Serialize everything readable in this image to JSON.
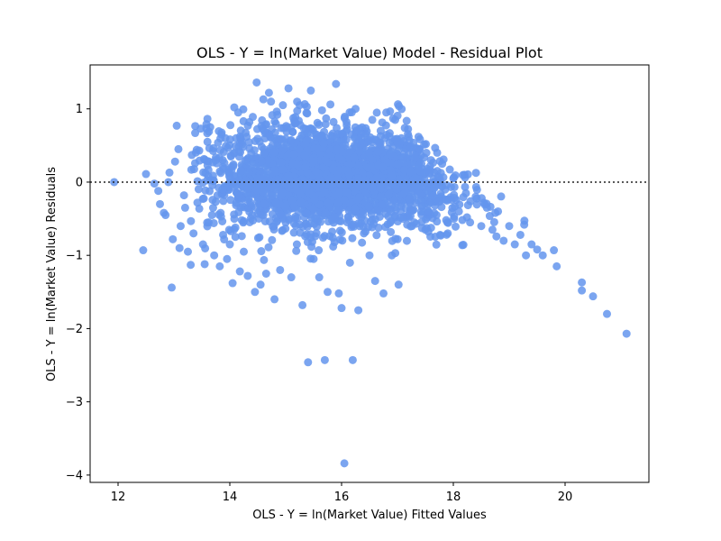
{
  "chart_data": {
    "type": "scatter",
    "title": "OLS - Y = ln(Market Value) Model - Residual Plot",
    "xlabel": "OLS - Y = ln(Market Value) Fitted Values",
    "ylabel": "OLS - Y = ln(Market Value) Residuals",
    "xlim": [
      11.5,
      21.5
    ],
    "ylim": [
      -4.1,
      1.6
    ],
    "xticks": [
      12,
      14,
      16,
      18,
      20
    ],
    "yticks": [
      1,
      0,
      -1,
      -2,
      -3,
      -4
    ],
    "xtick_labels": [
      "12",
      "14",
      "16",
      "18",
      "20"
    ],
    "ytick_labels": [
      "1",
      "0",
      "−1",
      "−2",
      "−3",
      "−4"
    ],
    "reference_line": {
      "y": 0,
      "style": "dotted",
      "color": "#222222"
    },
    "point_color": "#6495ED",
    "grid": false,
    "legend": "none",
    "series": [
      {
        "points": [
          [
            11.93,
            0.0
          ],
          [
            12.45,
            -0.93
          ],
          [
            12.5,
            0.11
          ],
          [
            12.65,
            -0.02
          ],
          [
            12.72,
            -0.12
          ],
          [
            12.75,
            -0.3
          ],
          [
            12.82,
            -0.42
          ],
          [
            12.85,
            -0.45
          ],
          [
            12.9,
            0.0
          ],
          [
            12.92,
            0.13
          ],
          [
            12.96,
            -1.44
          ],
          [
            12.98,
            -0.78
          ],
          [
            13.02,
            0.28
          ],
          [
            13.05,
            0.77
          ],
          [
            13.08,
            0.45
          ],
          [
            13.1,
            -0.9
          ],
          [
            13.12,
            -0.6
          ],
          [
            13.18,
            -0.18
          ],
          [
            13.2,
            -0.35
          ],
          [
            13.25,
            -0.95
          ],
          [
            13.3,
            -1.13
          ],
          [
            13.32,
            0.37
          ],
          [
            13.35,
            -0.7
          ],
          [
            13.38,
            0.67
          ],
          [
            13.42,
            -0.28
          ],
          [
            13.48,
            0.73
          ],
          [
            13.52,
            -0.85
          ],
          [
            13.55,
            -1.12
          ],
          [
            13.6,
            0.55
          ],
          [
            13.62,
            -0.55
          ],
          [
            13.65,
            0.75
          ],
          [
            13.68,
            -0.45
          ],
          [
            13.72,
            -1.0
          ],
          [
            13.75,
            0.3
          ],
          [
            13.78,
            -0.18
          ],
          [
            13.82,
            -1.15
          ],
          [
            13.85,
            0.65
          ],
          [
            13.88,
            -0.72
          ],
          [
            13.92,
            0.6
          ],
          [
            13.95,
            -1.05
          ],
          [
            14.0,
            -0.85
          ],
          [
            14.02,
            0.35
          ],
          [
            14.05,
            -1.38
          ],
          [
            14.08,
            1.02
          ],
          [
            14.1,
            -0.62
          ],
          [
            14.15,
            0.95
          ],
          [
            14.18,
            -1.22
          ],
          [
            14.2,
            0.15
          ],
          [
            14.25,
            -0.95
          ],
          [
            14.3,
            0.62
          ],
          [
            14.32,
            -1.28
          ],
          [
            14.35,
            0.82
          ],
          [
            14.4,
            -0.45
          ],
          [
            14.45,
            -1.5
          ],
          [
            14.48,
            1.36
          ],
          [
            14.5,
            0.05
          ],
          [
            14.55,
            -1.4
          ],
          [
            14.6,
            1.13
          ],
          [
            14.62,
            -0.3
          ],
          [
            14.65,
            -1.25
          ],
          [
            14.7,
            1.22
          ],
          [
            14.75,
            0.72
          ],
          [
            14.8,
            -1.6
          ],
          [
            14.85,
            0.92
          ],
          [
            14.9,
            -1.2
          ],
          [
            14.95,
            1.05
          ],
          [
            15.0,
            -0.55
          ],
          [
            15.05,
            1.28
          ],
          [
            15.1,
            -1.3
          ],
          [
            15.15,
            0.38
          ],
          [
            15.2,
            -0.85
          ],
          [
            15.25,
            1.05
          ],
          [
            15.3,
            -1.68
          ],
          [
            15.35,
            0.2
          ],
          [
            15.4,
            -2.46
          ],
          [
            15.45,
            1.25
          ],
          [
            15.5,
            -1.05
          ],
          [
            15.55,
            0.65
          ],
          [
            15.6,
            -1.3
          ],
          [
            15.65,
            0.98
          ],
          [
            15.7,
            -2.43
          ],
          [
            15.75,
            -1.5
          ],
          [
            15.8,
            1.06
          ],
          [
            15.85,
            -0.88
          ],
          [
            15.9,
            1.34
          ],
          [
            15.95,
            -1.52
          ],
          [
            16.0,
            -1.72
          ],
          [
            16.05,
            -3.84
          ],
          [
            16.1,
            0.72
          ],
          [
            16.15,
            -1.1
          ],
          [
            16.2,
            -2.43
          ],
          [
            16.25,
            1.0
          ],
          [
            16.3,
            -1.75
          ],
          [
            16.35,
            0.6
          ],
          [
            16.4,
            -0.7
          ],
          [
            16.5,
            -1.0
          ],
          [
            16.55,
            0.85
          ],
          [
            16.6,
            -1.35
          ],
          [
            16.7,
            0.7
          ],
          [
            16.75,
            -1.52
          ],
          [
            16.8,
            0.95
          ],
          [
            16.9,
            -1.0
          ],
          [
            17.0,
            0.55
          ],
          [
            17.02,
            -1.4
          ],
          [
            17.1,
            -0.5
          ],
          [
            17.2,
            0.62
          ],
          [
            17.3,
            -0.55
          ],
          [
            17.4,
            0.45
          ],
          [
            17.5,
            -0.65
          ],
          [
            17.6,
            0.3
          ],
          [
            17.7,
            -0.45
          ],
          [
            17.8,
            0.25
          ],
          [
            17.9,
            -0.7
          ],
          [
            18.0,
            0.05
          ],
          [
            18.1,
            -0.4
          ],
          [
            18.2,
            0.1
          ],
          [
            18.3,
            -0.55
          ],
          [
            18.4,
            -0.2
          ],
          [
            18.5,
            -0.6
          ],
          [
            18.6,
            -0.35
          ],
          [
            18.7,
            -0.65
          ],
          [
            18.8,
            -0.4
          ],
          [
            18.9,
            -0.8
          ],
          [
            19.0,
            -0.6
          ],
          [
            19.1,
            -0.85
          ],
          [
            19.2,
            -0.72
          ],
          [
            19.3,
            -1.0
          ],
          [
            19.4,
            -0.85
          ],
          [
            19.5,
            -0.92
          ],
          [
            19.6,
            -1.0
          ],
          [
            19.8,
            -0.93
          ],
          [
            19.85,
            -1.15
          ],
          [
            20.3,
            -1.37
          ],
          [
            20.3,
            -1.48
          ],
          [
            20.5,
            -1.56
          ],
          [
            20.75,
            -1.8
          ],
          [
            21.1,
            -2.07
          ]
        ],
        "cloud": {
          "n": 2600,
          "x_mean": 15.8,
          "x_sd": 1.05,
          "y_sd": 0.33
        }
      }
    ]
  }
}
